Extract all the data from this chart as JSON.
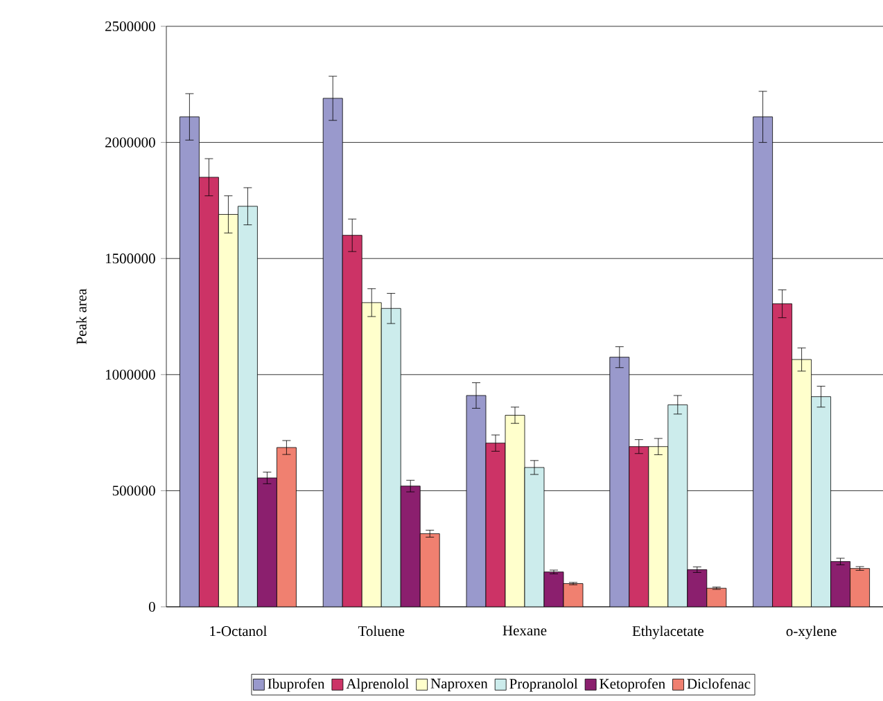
{
  "chart_data": {
    "type": "bar",
    "ylabel": "Peak area",
    "categories": [
      "1-Octanol",
      "Toluene",
      "Hexane",
      "Ethylacetate",
      "o-xylene"
    ],
    "series": [
      {
        "name": "Ibuprofen",
        "color": "#9999cc",
        "values": [
          2110000,
          2190000,
          910000,
          1075000,
          2110000
        ],
        "errors": [
          100000,
          95000,
          55000,
          45000,
          110000
        ]
      },
      {
        "name": "Alprenolol",
        "color": "#cc3366",
        "values": [
          1850000,
          1600000,
          705000,
          690000,
          1305000
        ],
        "errors": [
          80000,
          70000,
          35000,
          30000,
          60000
        ]
      },
      {
        "name": "Naproxen",
        "color": "#ffffcc",
        "values": [
          1690000,
          1310000,
          825000,
          690000,
          1065000
        ],
        "errors": [
          80000,
          60000,
          35000,
          35000,
          50000
        ]
      },
      {
        "name": "Propranolol",
        "color": "#ccecec",
        "values": [
          1725000,
          1285000,
          600000,
          870000,
          905000
        ],
        "errors": [
          80000,
          65000,
          30000,
          40000,
          45000
        ]
      },
      {
        "name": "Ketoprofen",
        "color": "#8b1f6e",
        "values": [
          555000,
          520000,
          150000,
          160000,
          195000
        ],
        "errors": [
          25000,
          25000,
          8000,
          12000,
          14000
        ]
      },
      {
        "name": "Diclofenac",
        "color": "#f08070",
        "values": [
          686000,
          315000,
          100000,
          80000,
          165000
        ],
        "errors": [
          30000,
          15000,
          5000,
          5000,
          8000
        ]
      }
    ],
    "ylim": [
      0,
      2500000
    ],
    "yticks": [
      0,
      500000,
      1000000,
      1500000,
      2000000,
      2500000
    ],
    "grid": "y",
    "legend": "bottom"
  }
}
